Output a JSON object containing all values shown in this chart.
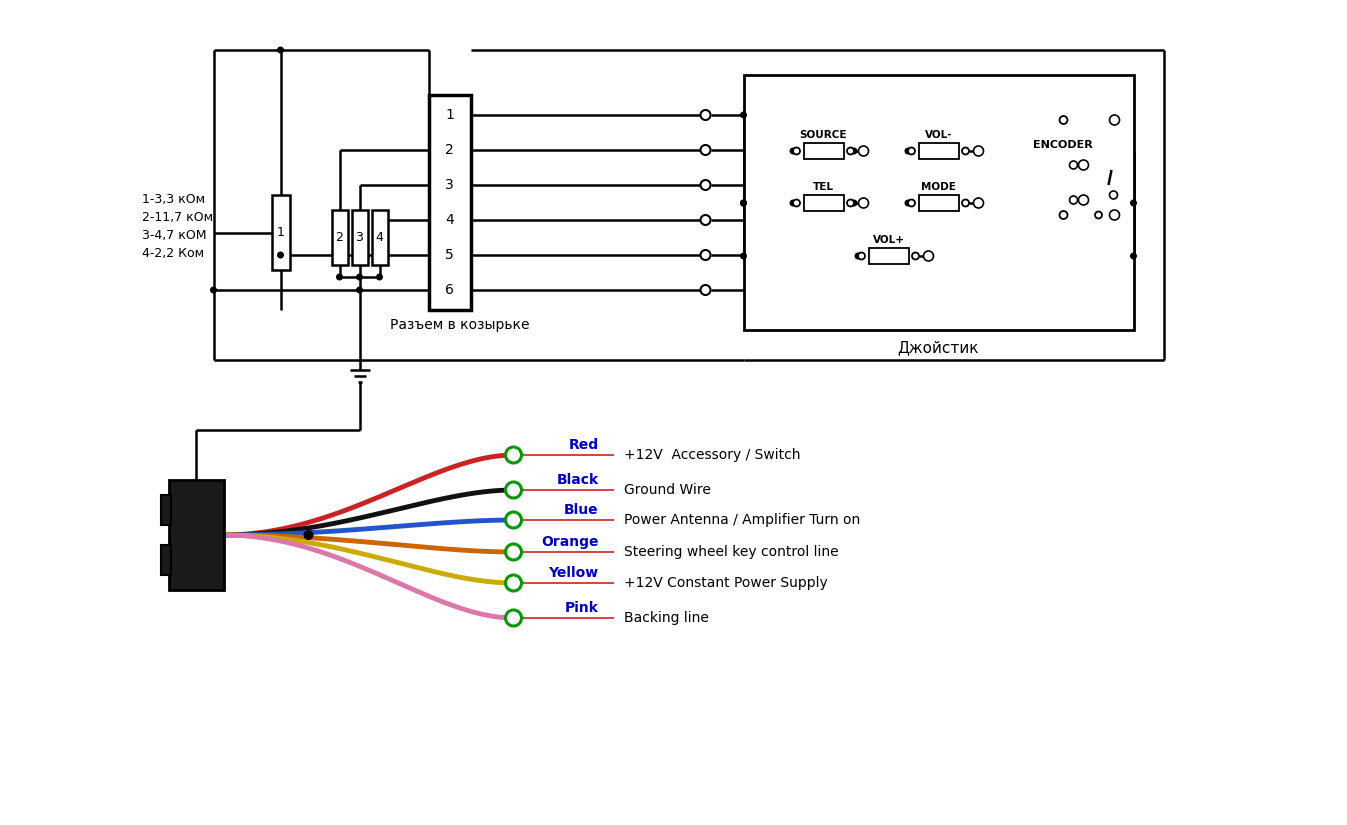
{
  "bg_color": "#ffffff",
  "resistor_labels": [
    "1-3,3 кОм",
    "2-11,7 кОм",
    "3-4,7 кОМ",
    "4-2,2 Ком"
  ],
  "connector_pins": [
    "1",
    "2",
    "3",
    "4",
    "5",
    "6"
  ],
  "connector_label": "Разъем в козырьке",
  "joystick_label": "Джойстик",
  "wire_labels": [
    {
      "name": "Red",
      "desc": "+12V  Accessory / Switch",
      "wire_color": "#cc2222"
    },
    {
      "name": "Black",
      "desc": "Ground Wire",
      "wire_color": "#111111"
    },
    {
      "name": "Blue",
      "desc": "Power Antenna / Amplifier Turn on",
      "wire_color": "#2255cc"
    },
    {
      "name": "Orange",
      "desc": "Steering wheel key control line",
      "wire_color": "#cc6600"
    },
    {
      "name": "Yellow",
      "desc": "+12V Constant Power Supply",
      "wire_color": "#ccaa00"
    },
    {
      "name": "Pink",
      "desc": "Backing line",
      "wire_color": "#dd77aa"
    }
  ],
  "lc": "#000000",
  "lw": 1.8
}
